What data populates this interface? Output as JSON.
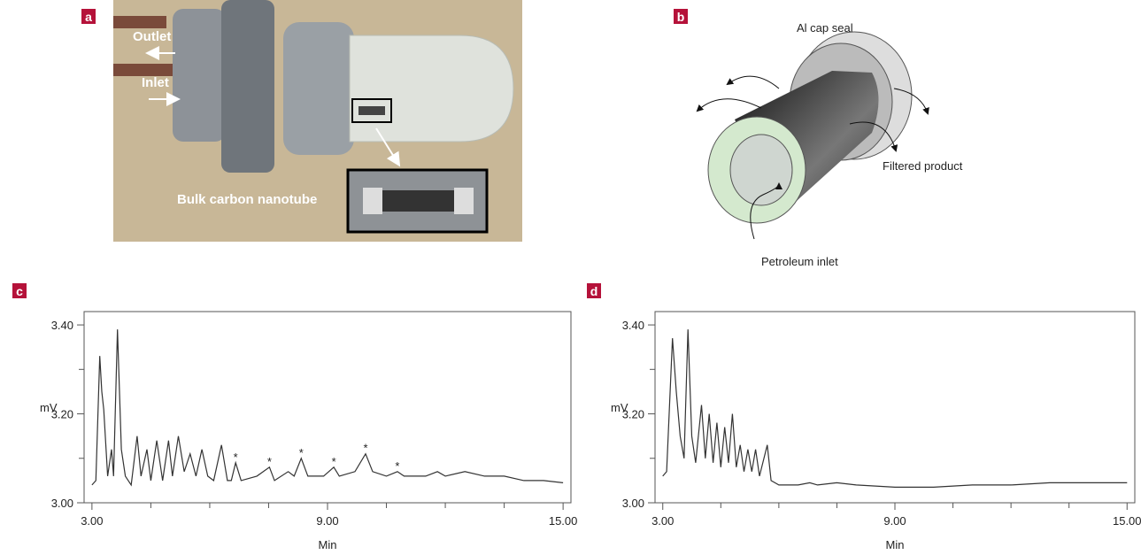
{
  "panels": {
    "a": {
      "label": "a",
      "outlet": "Outlet",
      "inlet": "Inlet",
      "inset": "Bulk carbon nanotube"
    },
    "b": {
      "label": "b",
      "cap": "Al cap seal",
      "product": "Filtered product",
      "inlet": "Petroleum inlet"
    }
  },
  "chart_data": [
    {
      "type": "line",
      "panel_label": "c",
      "xlabel": "Min",
      "ylabel": "mV",
      "color": "#333333",
      "xlim": [
        2.8,
        15.2
      ],
      "ylim": [
        3.0,
        3.43
      ],
      "xticks": [
        {
          "value": 3,
          "label": "3.00"
        },
        {
          "value": 9,
          "label": "9.00"
        },
        {
          "value": 15,
          "label": "15.00"
        }
      ],
      "xminorticks": [
        4.5,
        6,
        7.5,
        10.5,
        12,
        13.5
      ],
      "yticks": [
        {
          "value": 3.0,
          "label": "3.00"
        },
        {
          "value": 3.2,
          "label": "3.20"
        },
        {
          "value": 3.4,
          "label": "3.40"
        }
      ],
      "yminorticks": [
        3.1,
        3.3
      ],
      "x": [
        3.0,
        3.1,
        3.2,
        3.25,
        3.3,
        3.4,
        3.5,
        3.55,
        3.65,
        3.75,
        3.85,
        4.0,
        4.15,
        4.25,
        4.4,
        4.5,
        4.65,
        4.8,
        4.95,
        5.05,
        5.2,
        5.35,
        5.5,
        5.65,
        5.8,
        5.95,
        6.1,
        6.3,
        6.45,
        6.55,
        6.66,
        6.8,
        7.2,
        7.52,
        7.65,
        8.0,
        8.15,
        8.33,
        8.5,
        8.9,
        9.16,
        9.3,
        9.7,
        9.97,
        10.15,
        10.5,
        10.78,
        10.95,
        11.5,
        11.8,
        12.0,
        12.5,
        13.0,
        13.5,
        14.0,
        14.5,
        15.0
      ],
      "values": [
        3.04,
        3.05,
        3.33,
        3.25,
        3.21,
        3.06,
        3.12,
        3.06,
        3.39,
        3.12,
        3.06,
        3.04,
        3.15,
        3.06,
        3.12,
        3.05,
        3.14,
        3.05,
        3.14,
        3.06,
        3.15,
        3.07,
        3.11,
        3.06,
        3.12,
        3.06,
        3.05,
        3.13,
        3.05,
        3.05,
        3.09,
        3.05,
        3.06,
        3.08,
        3.05,
        3.07,
        3.06,
        3.1,
        3.06,
        3.06,
        3.08,
        3.06,
        3.07,
        3.11,
        3.07,
        3.06,
        3.07,
        3.06,
        3.06,
        3.07,
        3.06,
        3.07,
        3.06,
        3.06,
        3.05,
        3.05,
        3.045
      ],
      "annotations": [
        {
          "x": 6.66,
          "y": 3.09,
          "text": "*"
        },
        {
          "x": 7.52,
          "y": 3.08,
          "text": "*"
        },
        {
          "x": 8.33,
          "y": 3.1,
          "text": "*"
        },
        {
          "x": 9.16,
          "y": 3.08,
          "text": "*"
        },
        {
          "x": 9.97,
          "y": 3.11,
          "text": "*"
        },
        {
          "x": 10.78,
          "y": 3.07,
          "text": "*"
        }
      ]
    },
    {
      "type": "line",
      "panel_label": "d",
      "xlabel": "Min",
      "ylabel": "mV",
      "color": "#333333",
      "xlim": [
        2.8,
        15.2
      ],
      "ylim": [
        3.0,
        3.43
      ],
      "xticks": [
        {
          "value": 3,
          "label": "3.00"
        },
        {
          "value": 9,
          "label": "9.00"
        },
        {
          "value": 15,
          "label": "15.00"
        }
      ],
      "xminorticks": [
        4.5,
        6,
        7.5,
        10.5,
        12,
        13.5
      ],
      "yticks": [
        {
          "value": 3.0,
          "label": "3.00"
        },
        {
          "value": 3.2,
          "label": "3.20"
        },
        {
          "value": 3.4,
          "label": "3.40"
        }
      ],
      "yminorticks": [
        3.1,
        3.3
      ],
      "x": [
        3.0,
        3.1,
        3.25,
        3.35,
        3.45,
        3.55,
        3.65,
        3.75,
        3.85,
        4.0,
        4.1,
        4.2,
        4.3,
        4.4,
        4.5,
        4.6,
        4.7,
        4.8,
        4.9,
        5.0,
        5.1,
        5.2,
        5.3,
        5.4,
        5.5,
        5.7,
        5.8,
        6.0,
        6.5,
        6.8,
        7.0,
        7.5,
        8.0,
        9.0,
        10.0,
        11.0,
        12.0,
        13.0,
        14.0,
        15.0
      ],
      "values": [
        3.06,
        3.07,
        3.37,
        3.25,
        3.15,
        3.1,
        3.39,
        3.15,
        3.09,
        3.22,
        3.1,
        3.2,
        3.09,
        3.18,
        3.08,
        3.17,
        3.09,
        3.2,
        3.08,
        3.13,
        3.07,
        3.12,
        3.07,
        3.12,
        3.06,
        3.13,
        3.05,
        3.04,
        3.04,
        3.045,
        3.04,
        3.045,
        3.04,
        3.035,
        3.035,
        3.04,
        3.04,
        3.045,
        3.045,
        3.045
      ],
      "annotations": []
    }
  ]
}
